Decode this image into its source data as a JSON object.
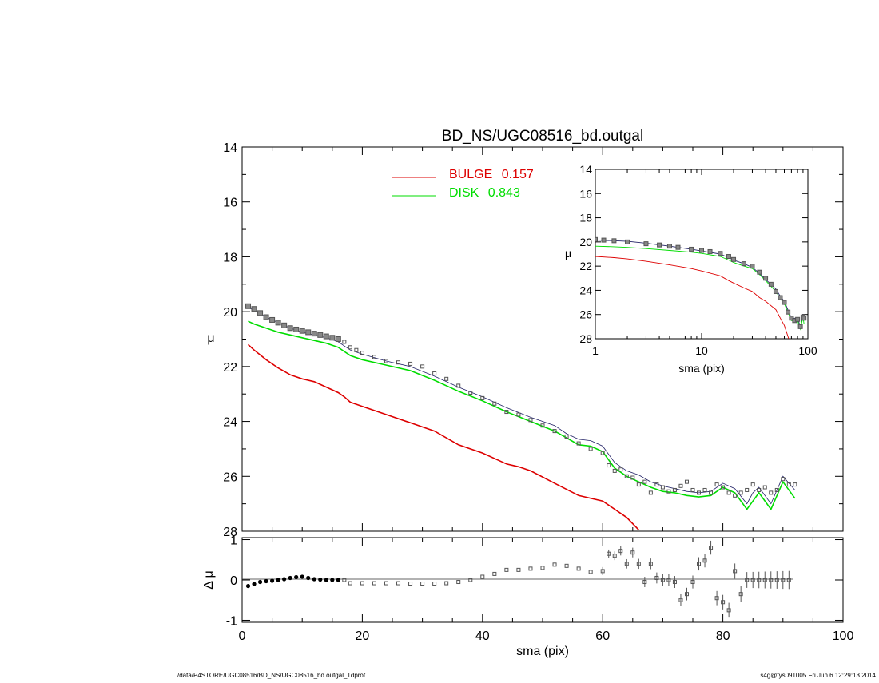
{
  "chart_data": [
    {
      "id": "main",
      "type": "scatter",
      "title": "BD_NS/UGC08516_bd.outgal",
      "xlabel": "",
      "ylabel": "μ",
      "xlim": [
        0,
        100
      ],
      "ylim": [
        28,
        14
      ],
      "yticks": [
        14,
        16,
        18,
        20,
        22,
        24,
        26,
        28
      ],
      "legend": [
        {
          "name": "BULGE",
          "value": "0.157",
          "color": "#dd0000"
        },
        {
          "name": "DISK",
          "value": "0.843",
          "color": "#00dd00"
        }
      ],
      "series": [
        {
          "name": "data",
          "style": "squares",
          "color": "#555555",
          "x": [
            1,
            2,
            3,
            4,
            5,
            6,
            7,
            8,
            9,
            10,
            11,
            12,
            13,
            14,
            15,
            16,
            17,
            18,
            19,
            20,
            22,
            24,
            26,
            28,
            30,
            32,
            34,
            36,
            38,
            40,
            42,
            44,
            46,
            48,
            50,
            52,
            54,
            56,
            58,
            60,
            61,
            62,
            63,
            64,
            65,
            66,
            67,
            68,
            69,
            70,
            71,
            72,
            73,
            74,
            75,
            76,
            77,
            78,
            79,
            80,
            81,
            82,
            83,
            84,
            85,
            86,
            87,
            88,
            89,
            90,
            91,
            92
          ],
          "y": [
            19.8,
            19.9,
            20.05,
            20.2,
            20.3,
            20.4,
            20.5,
            20.6,
            20.65,
            20.7,
            20.75,
            20.8,
            20.85,
            20.9,
            20.95,
            21.0,
            21.1,
            21.3,
            21.4,
            21.5,
            21.65,
            21.8,
            21.85,
            21.9,
            22.0,
            22.25,
            22.45,
            22.7,
            22.95,
            23.15,
            23.35,
            23.65,
            23.75,
            23.95,
            24.15,
            24.35,
            24.55,
            24.8,
            25.0,
            25.15,
            25.6,
            25.8,
            25.75,
            26.0,
            26.05,
            26.3,
            26.2,
            26.6,
            26.3,
            26.4,
            26.55,
            26.5,
            26.35,
            26.2,
            26.5,
            26.6,
            26.5,
            26.6,
            26.3,
            26.4,
            26.6,
            26.7,
            26.6,
            26.5,
            26.3,
            26.5,
            26.4,
            26.6,
            26.5,
            26.1,
            26.3,
            26.3
          ]
        },
        {
          "name": "model",
          "style": "line",
          "color": "#222266",
          "x": [
            1,
            2,
            4,
            6,
            8,
            10,
            12,
            14,
            16,
            17,
            18,
            20,
            24,
            28,
            32,
            36,
            40,
            44,
            48,
            52,
            54,
            56,
            58,
            60,
            62,
            64,
            66,
            68,
            70,
            72,
            74,
            76,
            78,
            80,
            82,
            84,
            85,
            86,
            88,
            90,
            92
          ],
          "y": [
            19.85,
            19.95,
            20.2,
            20.4,
            20.6,
            20.75,
            20.85,
            20.95,
            21.1,
            21.25,
            21.4,
            21.55,
            21.8,
            22.0,
            22.35,
            22.75,
            23.1,
            23.5,
            23.85,
            24.15,
            24.45,
            24.65,
            24.7,
            24.9,
            25.5,
            25.8,
            25.95,
            26.2,
            26.35,
            26.45,
            26.55,
            26.6,
            26.55,
            26.25,
            26.45,
            27.0,
            26.6,
            26.4,
            27.0,
            26.0,
            26.5
          ]
        },
        {
          "name": "disk",
          "style": "line",
          "color": "#00dd00",
          "x": [
            1,
            2,
            4,
            6,
            8,
            10,
            12,
            14,
            16,
            17,
            18,
            20,
            24,
            28,
            32,
            36,
            40,
            44,
            48,
            52,
            54,
            56,
            58,
            60,
            62,
            64,
            66,
            68,
            70,
            72,
            74,
            76,
            78,
            80,
            82,
            84,
            85,
            86,
            88,
            90,
            92
          ],
          "y": [
            20.35,
            20.45,
            20.6,
            20.75,
            20.85,
            20.95,
            21.05,
            21.15,
            21.3,
            21.45,
            21.6,
            21.75,
            21.95,
            22.15,
            22.5,
            22.9,
            23.25,
            23.65,
            24.0,
            24.35,
            24.6,
            24.85,
            24.9,
            25.1,
            25.7,
            26.0,
            26.2,
            26.4,
            26.55,
            26.6,
            26.7,
            26.75,
            26.7,
            26.4,
            26.6,
            27.2,
            26.9,
            26.6,
            27.2,
            26.2,
            26.8
          ]
        },
        {
          "name": "bulge",
          "style": "line",
          "color": "#dd0000",
          "x": [
            1,
            2,
            4,
            6,
            8,
            10,
            12,
            14,
            16,
            17,
            18,
            20,
            24,
            28,
            32,
            36,
            40,
            44,
            46,
            48,
            52,
            56,
            60,
            62,
            64,
            66
          ],
          "y": [
            21.2,
            21.4,
            21.75,
            22.05,
            22.3,
            22.45,
            22.55,
            22.75,
            22.95,
            23.1,
            23.3,
            23.45,
            23.75,
            24.05,
            24.35,
            24.85,
            25.15,
            25.55,
            25.65,
            25.8,
            26.25,
            26.7,
            26.9,
            27.2,
            27.5,
            27.95
          ]
        }
      ]
    },
    {
      "id": "inset",
      "type": "scatter",
      "xscale": "log",
      "xlim": [
        1,
        100
      ],
      "ylim": [
        28,
        14
      ],
      "xticks": [
        1,
        10,
        100
      ],
      "yticks": [
        14,
        16,
        18,
        20,
        22,
        24,
        26,
        28
      ],
      "xlabel": "sma (pix)",
      "ylabel": "μ",
      "series": [
        {
          "name": "data",
          "style": "squares",
          "color": "#555555",
          "x": [
            1,
            1.2,
            1.5,
            2,
            3,
            4,
            5,
            6,
            8,
            10,
            12,
            15,
            18,
            20,
            25,
            30,
            35,
            40,
            45,
            50,
            55,
            60,
            65,
            70,
            75,
            80,
            85,
            90,
            92
          ],
          "y": [
            19.8,
            19.85,
            19.9,
            20.0,
            20.15,
            20.25,
            20.35,
            20.45,
            20.6,
            20.7,
            20.8,
            20.95,
            21.2,
            21.45,
            21.8,
            22.0,
            22.5,
            23.0,
            23.5,
            24.1,
            24.6,
            25.0,
            25.8,
            26.3,
            26.5,
            26.4,
            27.0,
            26.2,
            26.3
          ]
        },
        {
          "name": "model",
          "style": "line",
          "color": "#222266",
          "x": [
            1,
            1.5,
            2,
            3,
            5,
            8,
            10,
            15,
            18,
            20,
            25,
            30,
            35,
            40,
            50,
            55,
            60,
            70,
            80,
            85,
            90,
            92
          ],
          "y": [
            19.85,
            19.9,
            19.95,
            20.1,
            20.35,
            20.6,
            20.75,
            21.0,
            21.3,
            21.5,
            21.8,
            22.1,
            22.6,
            23.1,
            23.9,
            24.5,
            24.9,
            26.3,
            26.3,
            27.0,
            26.0,
            26.5
          ]
        },
        {
          "name": "disk",
          "style": "line",
          "color": "#00dd00",
          "x": [
            1,
            1.5,
            2,
            3,
            5,
            8,
            10,
            15,
            18,
            20,
            25,
            30,
            35,
            40,
            50,
            55,
            60,
            70,
            80,
            85,
            90,
            92
          ],
          "y": [
            20.35,
            20.4,
            20.45,
            20.55,
            20.7,
            20.85,
            20.95,
            21.2,
            21.5,
            21.7,
            22.0,
            22.2,
            22.7,
            23.2,
            24.1,
            24.7,
            25.1,
            26.5,
            26.5,
            27.2,
            26.2,
            26.8
          ]
        },
        {
          "name": "bulge",
          "style": "line",
          "color": "#dd0000",
          "x": [
            1,
            1.5,
            2,
            3,
            5,
            8,
            10,
            15,
            18,
            20,
            25,
            30,
            35,
            40,
            50,
            55,
            60,
            66
          ],
          "y": [
            21.2,
            21.3,
            21.4,
            21.6,
            21.9,
            22.2,
            22.4,
            22.8,
            23.2,
            23.4,
            23.8,
            24.1,
            24.6,
            24.9,
            25.6,
            26.3,
            26.9,
            28.0
          ]
        }
      ]
    },
    {
      "id": "residual",
      "type": "scatter",
      "xlim": [
        0,
        100
      ],
      "ylim": [
        -1.05,
        1.05
      ],
      "xticks": [
        0,
        20,
        40,
        60,
        80,
        100
      ],
      "yticks": [
        1,
        0,
        -1
      ],
      "xlabel": "sma (pix)",
      "ylabel": "Δ μ",
      "series": [
        {
          "name": "residuals",
          "style": "squares",
          "color": "#555555",
          "x": [
            1,
            2,
            3,
            4,
            5,
            6,
            7,
            8,
            9,
            10,
            11,
            12,
            13,
            14,
            15,
            16,
            17,
            18,
            20,
            22,
            24,
            26,
            28,
            30,
            32,
            34,
            36,
            38,
            40,
            42,
            44,
            46,
            48,
            50,
            52,
            54,
            56,
            58,
            60,
            61,
            62,
            63,
            64,
            65,
            66,
            67,
            68,
            69,
            70,
            71,
            72,
            73,
            74,
            75,
            76,
            77,
            78,
            79,
            80,
            81,
            82,
            83,
            84,
            85,
            86,
            87,
            88,
            89,
            90,
            91,
            92
          ],
          "y": [
            -0.15,
            -0.1,
            -0.05,
            -0.03,
            -0.02,
            0.0,
            0.02,
            0.05,
            0.07,
            0.08,
            0.05,
            0.02,
            0.01,
            0.0,
            0.0,
            0.0,
            0.0,
            -0.08,
            -0.08,
            -0.08,
            -0.08,
            -0.08,
            -0.09,
            -0.09,
            -0.09,
            -0.08,
            -0.05,
            0.0,
            0.08,
            0.15,
            0.25,
            0.25,
            0.28,
            0.3,
            0.38,
            0.35,
            0.28,
            0.2,
            0.22,
            0.65,
            0.6,
            0.72,
            0.4,
            0.68,
            0.4,
            -0.05,
            0.4,
            0.05,
            0.0,
            0.0,
            -0.05,
            -0.5,
            -0.35,
            -0.05,
            0.4,
            0.48,
            0.8,
            -0.45,
            -0.55,
            -0.75,
            0.22,
            -0.35,
            0.0,
            0.0,
            0.0,
            0.0,
            0.0,
            0.0,
            0.0,
            0.0,
            0.0
          ],
          "error_bars": true
        }
      ]
    }
  ],
  "footer": {
    "left": "/data/P4STORE/UGC08516/BD_NS/UGC08516_bd.outgal_1dprof",
    "right": "s4g@fys091005  Fri Jun  6 12:29:13 2014"
  }
}
